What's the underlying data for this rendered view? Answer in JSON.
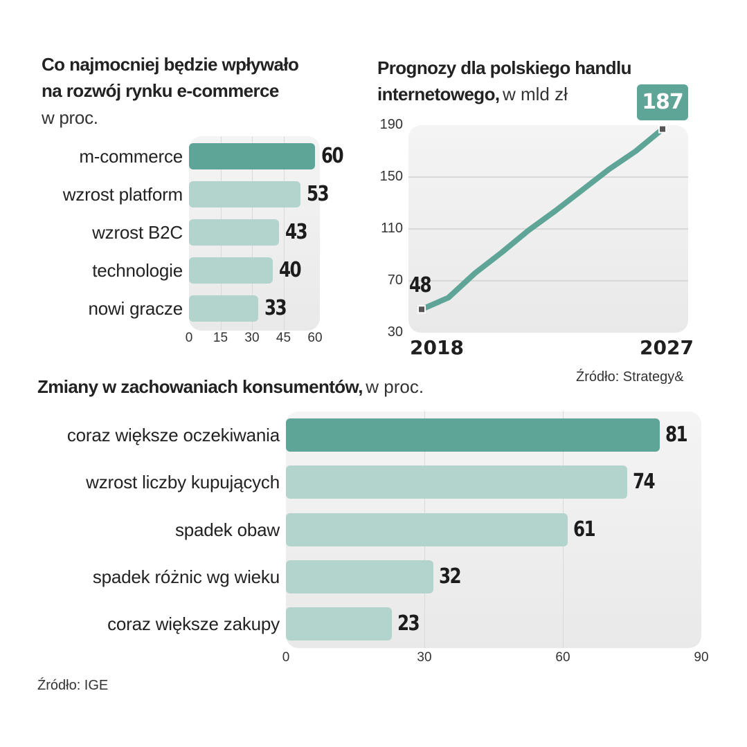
{
  "colors": {
    "highlight": "#5ea597",
    "regular": "#b2d4cd",
    "marker": "#555555"
  },
  "chart_data": [
    {
      "type": "bar",
      "orientation": "horizontal",
      "title_line1": "Co najmocniej będzie wpływało",
      "title_line2": "na rozwój rynku e-commerce",
      "subtitle": "w proc.",
      "categories": [
        "m-commerce",
        "wzrost platform",
        "wzrost B2C",
        "technologie",
        "nowi gracze"
      ],
      "values": [
        60,
        53,
        43,
        40,
        33
      ],
      "value_labels": [
        "60",
        "53",
        "43",
        "40",
        "33"
      ],
      "highlight_index": 0,
      "xlim": [
        0,
        60
      ],
      "xticks": [
        0,
        15,
        30,
        45,
        60
      ],
      "xtick_labels": [
        "0",
        "15",
        "30",
        "45",
        "60"
      ],
      "grid": true,
      "xlabel": "",
      "ylabel": ""
    },
    {
      "type": "line",
      "title_line1": "Prognozy dla polskiego handlu",
      "title_line2_bold": "internetowego,",
      "title_line2_unit": "w mld zł",
      "x": [
        2018,
        2019,
        2020,
        2021,
        2022,
        2023,
        2024,
        2025,
        2026,
        2027
      ],
      "values": [
        48,
        57,
        76,
        92,
        109,
        124,
        140,
        156,
        170,
        187
      ],
      "start_label": "48",
      "end_label": "187",
      "x_labels": [
        "2018",
        "2027"
      ],
      "ylim": [
        30,
        190
      ],
      "yticks": [
        30,
        70,
        110,
        150,
        190
      ],
      "ytick_labels": [
        "30",
        "70",
        "110",
        "150",
        "190"
      ],
      "grid": true,
      "source": "Źródło: Strategy&",
      "xlabel": "",
      "ylabel": ""
    },
    {
      "type": "bar",
      "orientation": "horizontal",
      "title_bold": "Zmiany w zachowaniach konsumentów,",
      "title_unit": "w proc.",
      "categories": [
        "coraz większe oczekiwania",
        "wzrost liczby kupujących",
        "spadek obaw",
        "spadek różnic wg wieku",
        "coraz większe zakupy"
      ],
      "values": [
        81,
        74,
        61,
        32,
        23
      ],
      "value_labels": [
        "81",
        "74",
        "61",
        "32",
        "23"
      ],
      "highlight_index": 0,
      "xlim": [
        0,
        90
      ],
      "xticks": [
        0,
        30,
        60,
        90
      ],
      "xtick_labels": [
        "0",
        "30",
        "60",
        "90"
      ],
      "grid": true,
      "source": "Źródło: IGE",
      "xlabel": "",
      "ylabel": ""
    }
  ]
}
